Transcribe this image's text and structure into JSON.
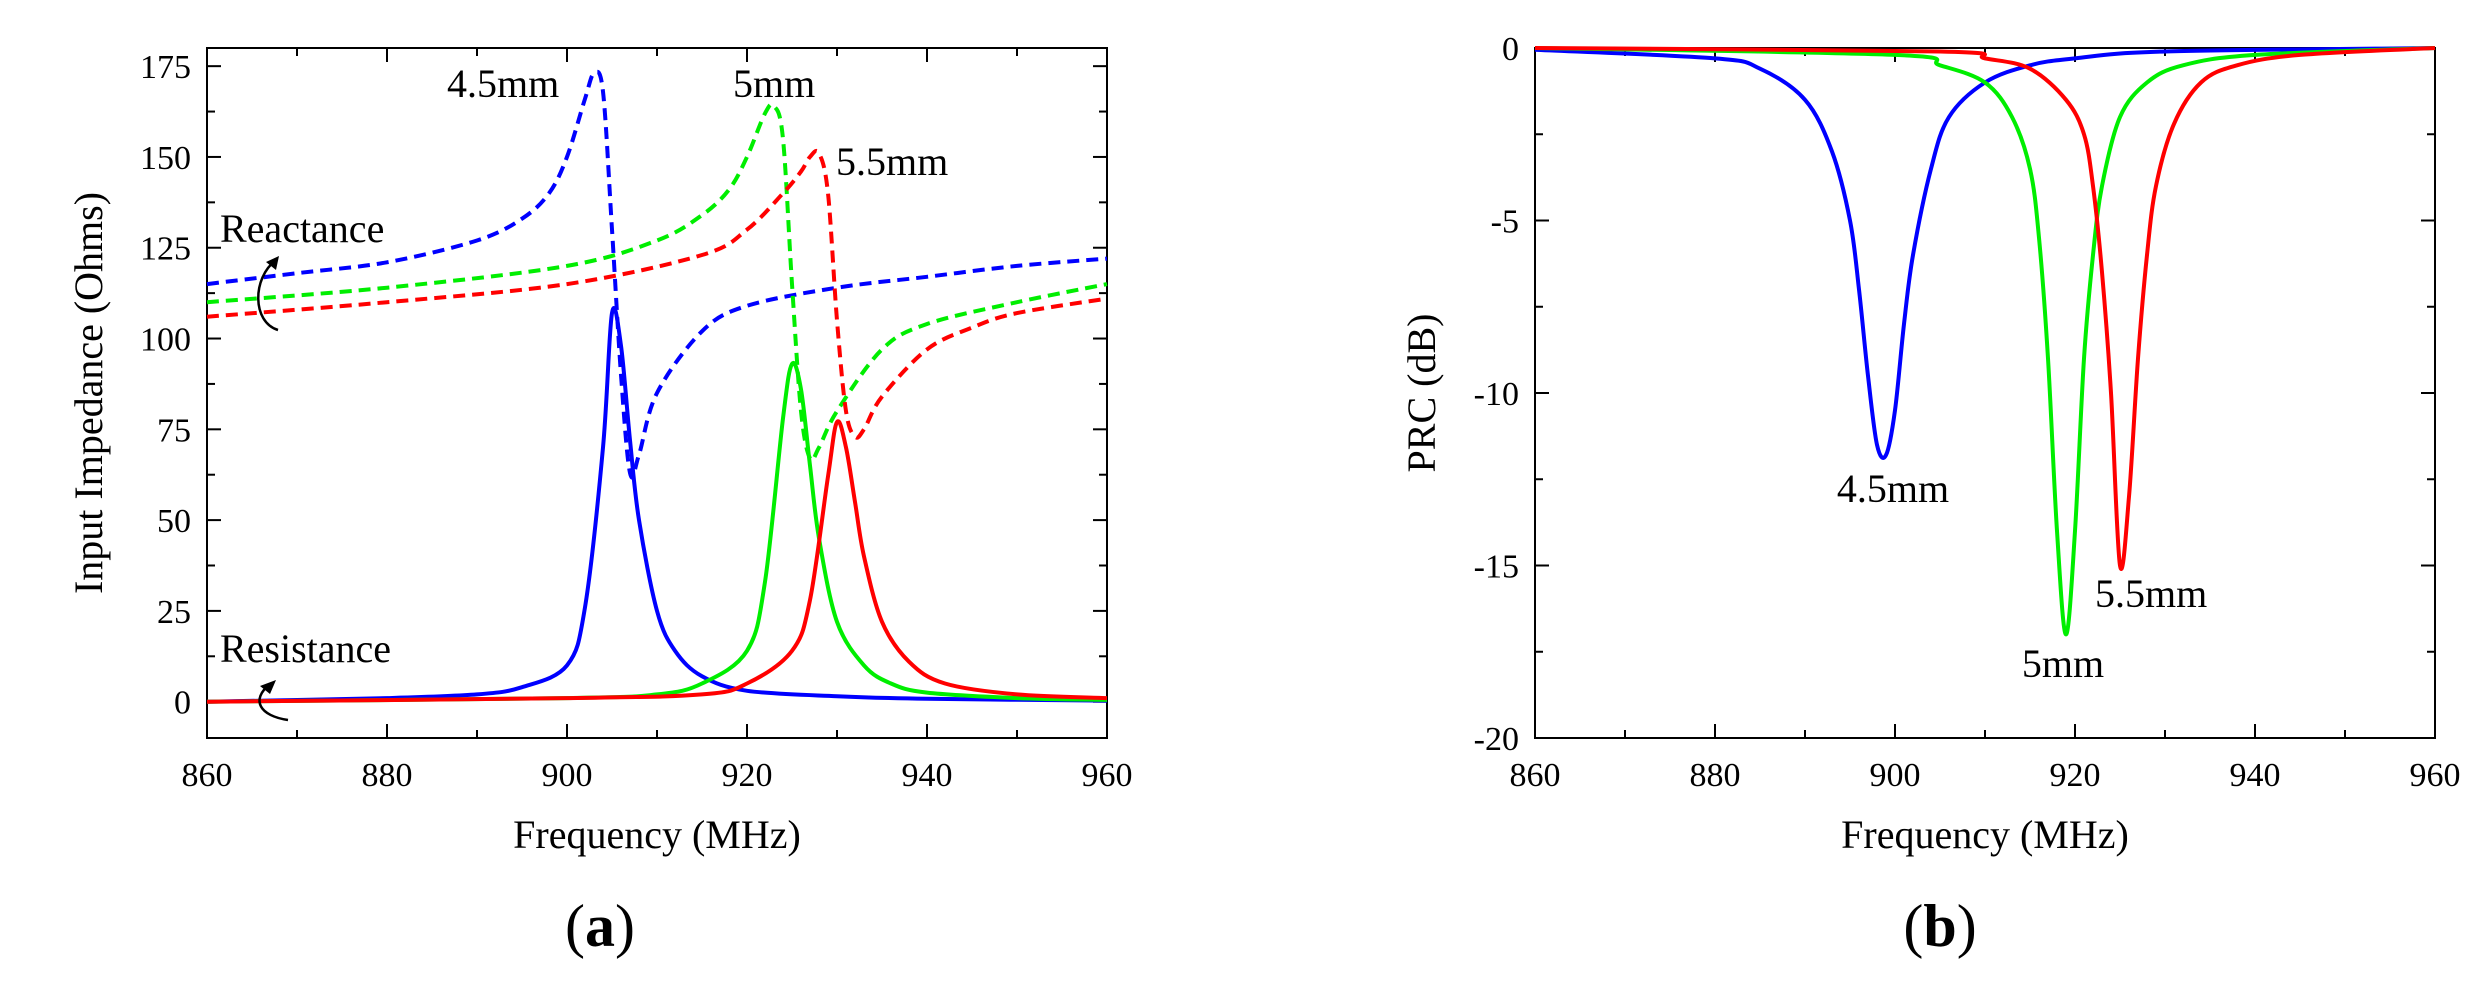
{
  "panels": [
    {
      "panel_label": "a",
      "chart_data": {
        "type": "line",
        "xlabel": "Frequency (MHz)",
        "ylabel": "Input Impedance (Ohms)",
        "xlim": [
          860,
          960
        ],
        "ylim": [
          -10,
          180
        ],
        "xticks": [
          860,
          880,
          900,
          920,
          940,
          960
        ],
        "yticks": [
          0,
          25,
          50,
          75,
          100,
          125,
          150,
          175
        ],
        "grid": false,
        "colors": {
          "4.5mm": "#0000ff",
          "5mm": "#00ee00",
          "5.5mm": "#ff0000"
        },
        "annotations": {
          "reactance": "Reactance",
          "resistance": "Resistance",
          "label_45": "4.5mm",
          "label_5": "5mm",
          "label_55": "5.5mm"
        },
        "series": [
          {
            "quantity": "Resistance",
            "size": "4.5mm",
            "style": "solid",
            "x": [
              860,
              880,
              890,
              895,
              900,
              902,
              904,
              905,
              906,
              907,
              908,
              910,
              912,
              915,
              920,
              930,
              940,
              960
            ],
            "y": [
              0,
              1,
              2,
              4,
              10,
              26,
              70,
              107,
              98,
              72,
              50,
              25,
              14,
              7,
              3,
              1.5,
              0.8,
              0.3
            ]
          },
          {
            "quantity": "Resistance",
            "size": "5mm",
            "style": "solid",
            "x": [
              860,
              900,
              910,
              915,
              920,
              922,
              924,
              925,
              926,
              927,
              928,
              930,
              933,
              936,
              940,
              950,
              960
            ],
            "y": [
              0,
              1,
              2,
              5,
              14,
              33,
              78,
              93,
              86,
              65,
              45,
              22,
              10,
              5,
              2.5,
              1,
              0.5
            ]
          },
          {
            "quantity": "Resistance",
            "size": "5.5mm",
            "style": "solid",
            "x": [
              860,
              900,
              915,
              920,
              925,
              927,
              929,
              930,
              931,
              932,
              933,
              935,
              938,
              942,
              950,
              960
            ],
            "y": [
              0,
              1,
              2,
              5,
              14,
              28,
              62,
              77,
              70,
              55,
              40,
              22,
              11,
              5,
              2,
              1
            ]
          },
          {
            "quantity": "Reactance",
            "size": "4.5mm",
            "style": "dashed",
            "x": [
              860,
              870,
              880,
              890,
              895,
              898,
              900,
              902,
              903,
              904,
              905,
              906,
              907,
              908,
              910,
              915,
              920,
              930,
              940,
              950,
              960
            ],
            "y": [
              115,
              118,
              121,
              127,
              133,
              140,
              150,
              166,
              173,
              168,
              130,
              90,
              63,
              68,
              85,
              102,
              109,
              114,
              117,
              120,
              122
            ]
          },
          {
            "quantity": "Reactance",
            "size": "5mm",
            "style": "dashed",
            "x": [
              860,
              880,
              900,
              910,
              915,
              918,
              920,
              922,
              923,
              924,
              925,
              926,
              927,
              928,
              930,
              935,
              940,
              950,
              960
            ],
            "y": [
              110,
              114,
              120,
              127,
              134,
              141,
              150,
              162,
              164,
              155,
              115,
              80,
              67,
              70,
              80,
              97,
              104,
              110,
              115
            ]
          },
          {
            "quantity": "Reactance",
            "size": "5.5mm",
            "style": "dashed",
            "x": [
              860,
              880,
              900,
              915,
              920,
              924,
              926,
              927,
              928,
              929,
              930,
              931,
              932,
              933,
              935,
              940,
              945,
              950,
              960
            ],
            "y": [
              106,
              110,
              115,
              123,
              130,
              140,
              146,
              150,
              151,
              140,
              105,
              80,
              73,
              75,
              84,
              97,
              103,
              107,
              111
            ]
          }
        ]
      }
    },
    {
      "panel_label": "b",
      "chart_data": {
        "type": "line",
        "xlabel": "Frequency (MHz)",
        "ylabel": "PRC (dB)",
        "xlim": [
          860,
          960
        ],
        "ylim": [
          -20,
          0
        ],
        "xticks": [
          860,
          880,
          900,
          920,
          940,
          960
        ],
        "yticks": [
          0,
          -5,
          -10,
          -15,
          -20
        ],
        "grid": false,
        "colors": {
          "4.5mm": "#0000ff",
          "5mm": "#00ee00",
          "5.5mm": "#ff0000"
        },
        "annotations": {
          "label_45": "4.5mm",
          "label_5": "5mm",
          "label_55": "5.5mm"
        },
        "series": [
          {
            "size": "4.5mm",
            "x": [
              860,
              880,
              885,
              890,
              893,
              895,
              896,
              897,
              898,
              899,
              900,
              901,
              902,
              904,
              906,
              910,
              915,
              920,
              930,
              960
            ],
            "y": [
              -0.05,
              -0.3,
              -0.6,
              -1.5,
              -3,
              -5,
              -7,
              -9.5,
              -11.5,
              -11.8,
              -10.5,
              -8,
              -6,
              -3.5,
              -2,
              -1,
              -0.5,
              -0.3,
              -0.1,
              0
            ]
          },
          {
            "size": "5mm",
            "x": [
              860,
              900,
              905,
              910,
              913,
              915,
              916,
              917,
              918,
              919,
              920,
              921,
              922,
              923,
              925,
              928,
              932,
              940,
              960
            ],
            "y": [
              0,
              -0.2,
              -0.5,
              -1,
              -2,
              -3.5,
              -5.5,
              -9,
              -14,
              -17,
              -14,
              -9,
              -6,
              -4,
              -2,
              -1,
              -0.5,
              -0.2,
              0
            ]
          },
          {
            "size": "5.5mm",
            "x": [
              860,
              905,
              910,
              915,
              919,
              921,
              922,
              923,
              924,
              925,
              926,
              927,
              928,
              929,
              931,
              934,
              938,
              945,
              960
            ],
            "y": [
              0,
              -0.1,
              -0.3,
              -0.6,
              -1.5,
              -2.5,
              -4,
              -6.5,
              -10,
              -15,
              -13,
              -9,
              -6,
              -4,
              -2.2,
              -1,
              -0.5,
              -0.2,
              0
            ]
          }
        ]
      }
    }
  ]
}
